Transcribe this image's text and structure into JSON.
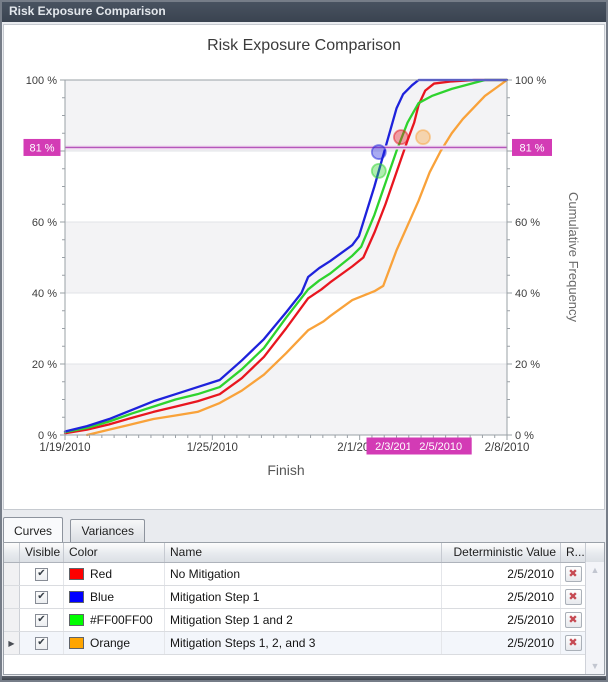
{
  "window": {
    "title": "Risk Exposure Comparison"
  },
  "chart_data": {
    "type": "line",
    "title": "Risk Exposure Comparison",
    "xlabel": "Finish",
    "ylabel_right": "Cumulative Frequency",
    "x_axis": {
      "start_date": "1/19/2010",
      "end_date": "2/8/2010",
      "days_span": 20,
      "tick_labels": [
        "1/19/2010",
        "1/25/2010",
        "2/1/2010",
        "2/8/2010"
      ]
    },
    "y_axis": {
      "min": 0,
      "max": 100,
      "unit": "%",
      "tick_values": [
        0,
        20,
        40,
        60,
        100
      ],
      "tick_labels": [
        "0 %",
        "20 %",
        "40 %",
        "60 %",
        "100 %"
      ],
      "gridlines": [
        20,
        40,
        60,
        80
      ],
      "minor_step": 5
    },
    "threshold": {
      "value": 81,
      "label": "81 %",
      "badge_color": "#d33bb5",
      "line_color": "#b557bb"
    },
    "x_callouts": [
      {
        "label": "2/3/2010",
        "day": 15
      },
      {
        "label": "2/5/2010",
        "day": 17
      }
    ],
    "band_color": "#f3f3f5",
    "series": [
      {
        "id": "red",
        "name": "No Mitigation",
        "color": "#e8161f",
        "points": [
          [
            0,
            0.5
          ],
          [
            1,
            1.5
          ],
          [
            2,
            3
          ],
          [
            3,
            4.8
          ],
          [
            4,
            6.5
          ],
          [
            5,
            8
          ],
          [
            6,
            9.5
          ],
          [
            7,
            11.5
          ],
          [
            8,
            16
          ],
          [
            9,
            22
          ],
          [
            10,
            30
          ],
          [
            11,
            38.5
          ],
          [
            11.6,
            41
          ],
          [
            12,
            43
          ],
          [
            13,
            47.5
          ],
          [
            13.5,
            50
          ],
          [
            14,
            57
          ],
          [
            14.5,
            65
          ],
          [
            15,
            74
          ],
          [
            15.5,
            83
          ],
          [
            15.8,
            88
          ],
          [
            16,
            93
          ],
          [
            16.3,
            97
          ],
          [
            16.7,
            99
          ],
          [
            17.5,
            99.6
          ],
          [
            18.5,
            100
          ],
          [
            20,
            100
          ]
        ]
      },
      {
        "id": "blue",
        "name": "Mitigation Step 1",
        "color": "#1e22dc",
        "points": [
          [
            0,
            1
          ],
          [
            1,
            2.5
          ],
          [
            2,
            4.5
          ],
          [
            3,
            7
          ],
          [
            4,
            9.5
          ],
          [
            5,
            11.5
          ],
          [
            6,
            13.5
          ],
          [
            7,
            15.5
          ],
          [
            8,
            21
          ],
          [
            9,
            27
          ],
          [
            10,
            34.5
          ],
          [
            10.7,
            40
          ],
          [
            11,
            44.5
          ],
          [
            11.5,
            47
          ],
          [
            12,
            49
          ],
          [
            13,
            53.5
          ],
          [
            13.3,
            56
          ],
          [
            14,
            70
          ],
          [
            14.5,
            81
          ],
          [
            15,
            92
          ],
          [
            15.3,
            96
          ],
          [
            15.7,
            98.5
          ],
          [
            16,
            100
          ],
          [
            20,
            100
          ]
        ]
      },
      {
        "id": "green",
        "name": "Mitigation Step 1 and 2",
        "color": "#2ed32e",
        "points": [
          [
            0,
            0.8
          ],
          [
            1,
            2
          ],
          [
            2,
            3.8
          ],
          [
            3,
            6
          ],
          [
            4,
            8
          ],
          [
            5,
            10
          ],
          [
            6,
            11.5
          ],
          [
            7,
            13.5
          ],
          [
            8,
            18.5
          ],
          [
            9,
            24.5
          ],
          [
            10,
            33
          ],
          [
            11,
            41
          ],
          [
            11.5,
            43.5
          ],
          [
            12,
            45.5
          ],
          [
            13,
            50.5
          ],
          [
            13.4,
            53
          ],
          [
            14,
            62
          ],
          [
            14.5,
            71
          ],
          [
            15,
            80
          ],
          [
            15.5,
            88
          ],
          [
            16,
            93.5
          ],
          [
            16.6,
            95.5
          ],
          [
            17.5,
            97.5
          ],
          [
            19,
            100
          ],
          [
            20,
            100
          ]
        ]
      },
      {
        "id": "orange",
        "name": "Mitigation Steps 1, 2, and 3",
        "color": "#f9a23a",
        "points": [
          [
            1,
            0
          ],
          [
            2,
            1.5
          ],
          [
            3,
            3
          ],
          [
            4,
            4.5
          ],
          [
            5,
            5.5
          ],
          [
            6,
            6.5
          ],
          [
            7,
            9
          ],
          [
            8,
            12.5
          ],
          [
            9,
            17
          ],
          [
            10,
            23
          ],
          [
            11,
            29.5
          ],
          [
            11.7,
            32
          ],
          [
            12,
            33.5
          ],
          [
            13,
            38
          ],
          [
            14,
            40.5
          ],
          [
            14.4,
            42
          ],
          [
            15,
            52
          ],
          [
            15.5,
            59
          ],
          [
            16,
            66
          ],
          [
            16.5,
            74
          ],
          [
            17,
            80
          ],
          [
            17.5,
            85
          ],
          [
            18,
            89
          ],
          [
            19,
            95.5
          ],
          [
            20,
            100
          ]
        ]
      }
    ],
    "markers": [
      {
        "series_id": "blue",
        "day": 14.2,
        "pct": 79.7
      },
      {
        "series_id": "green",
        "day": 14.2,
        "pct": 74.4
      },
      {
        "series_id": "red",
        "day": 15.2,
        "pct": 83.9
      },
      {
        "series_id": "orange",
        "day": 16.2,
        "pct": 83.9
      }
    ]
  },
  "tabs": [
    {
      "label": "Curves",
      "active": true
    },
    {
      "label": "Variances",
      "active": false
    }
  ],
  "table": {
    "columns": [
      "Visible",
      "Color",
      "Name",
      "Deterministic Value",
      "R..."
    ],
    "rows": [
      {
        "visible": true,
        "swatch": "#ff0000",
        "color_label": "Red",
        "name": "No Mitigation",
        "deterministic_value": "2/5/2010",
        "current": false
      },
      {
        "visible": true,
        "swatch": "#0000ff",
        "color_label": "Blue",
        "name": "Mitigation Step 1",
        "deterministic_value": "2/5/2010",
        "current": false
      },
      {
        "visible": true,
        "swatch": "#00ff00",
        "color_label": "#FF00FF00",
        "name": "Mitigation Step 1 and 2",
        "deterministic_value": "2/5/2010",
        "current": false
      },
      {
        "visible": true,
        "swatch": "#ffa500",
        "color_label": "Orange",
        "name": "Mitigation Steps 1, 2, and 3",
        "deterministic_value": "2/5/2010",
        "current": true
      }
    ]
  },
  "icons": {
    "check": "✔",
    "delete": "✖",
    "current_row": "▶",
    "scroll_up": "▲",
    "scroll_down": "▼"
  }
}
